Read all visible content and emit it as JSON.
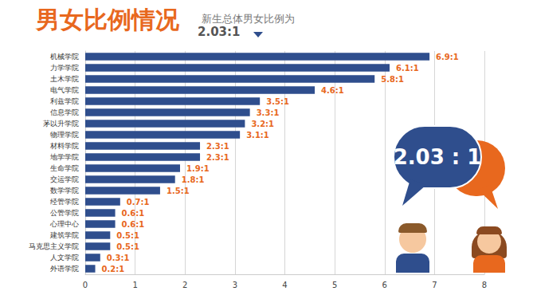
{
  "chart_data": {
    "type": "bar",
    "title": "男女比例情况",
    "subtitle": "新生总体男女比例为",
    "annotations": [
      "2.03:1",
      "2.03 : 1"
    ],
    "orientation": "horizontal",
    "categories": [
      "机械学院",
      "力学学院",
      "土木学院",
      "电气学院",
      "利兹学院",
      "信息学院",
      "茅以升学院",
      "物理学院",
      "材料学院",
      "地学学院",
      "生命学院",
      "交运学院",
      "数学学院",
      "经管学院",
      "公管学院",
      "心理中心",
      "建筑学院",
      "马克思主义学院",
      "人文学院",
      "外语学院"
    ],
    "values": [
      6.9,
      6.1,
      5.8,
      4.6,
      3.5,
      3.3,
      3.2,
      3.1,
      2.3,
      2.3,
      1.9,
      1.8,
      1.5,
      0.7,
      0.6,
      0.6,
      0.5,
      0.5,
      0.3,
      0.2
    ],
    "value_labels": [
      "6.9:1",
      "6.1:1",
      "5.8:1",
      "4.6:1",
      "3.5:1",
      "3.3:1",
      "3.2:1",
      "3.1:1",
      "2.3:1",
      "2.3:1",
      "1.9:1",
      "1.8:1",
      "1.5:1",
      "0.7:1",
      "0.6:1",
      "0.6:1",
      "0.5:1",
      "0.5:1",
      "0.3:1",
      "0.2:1"
    ],
    "color": "#2f4e8d",
    "xlim": [
      0,
      8
    ],
    "xticks": [
      0,
      1,
      2,
      3,
      4,
      5,
      6,
      7,
      8
    ],
    "grid": true,
    "data_labels": true
  }
}
